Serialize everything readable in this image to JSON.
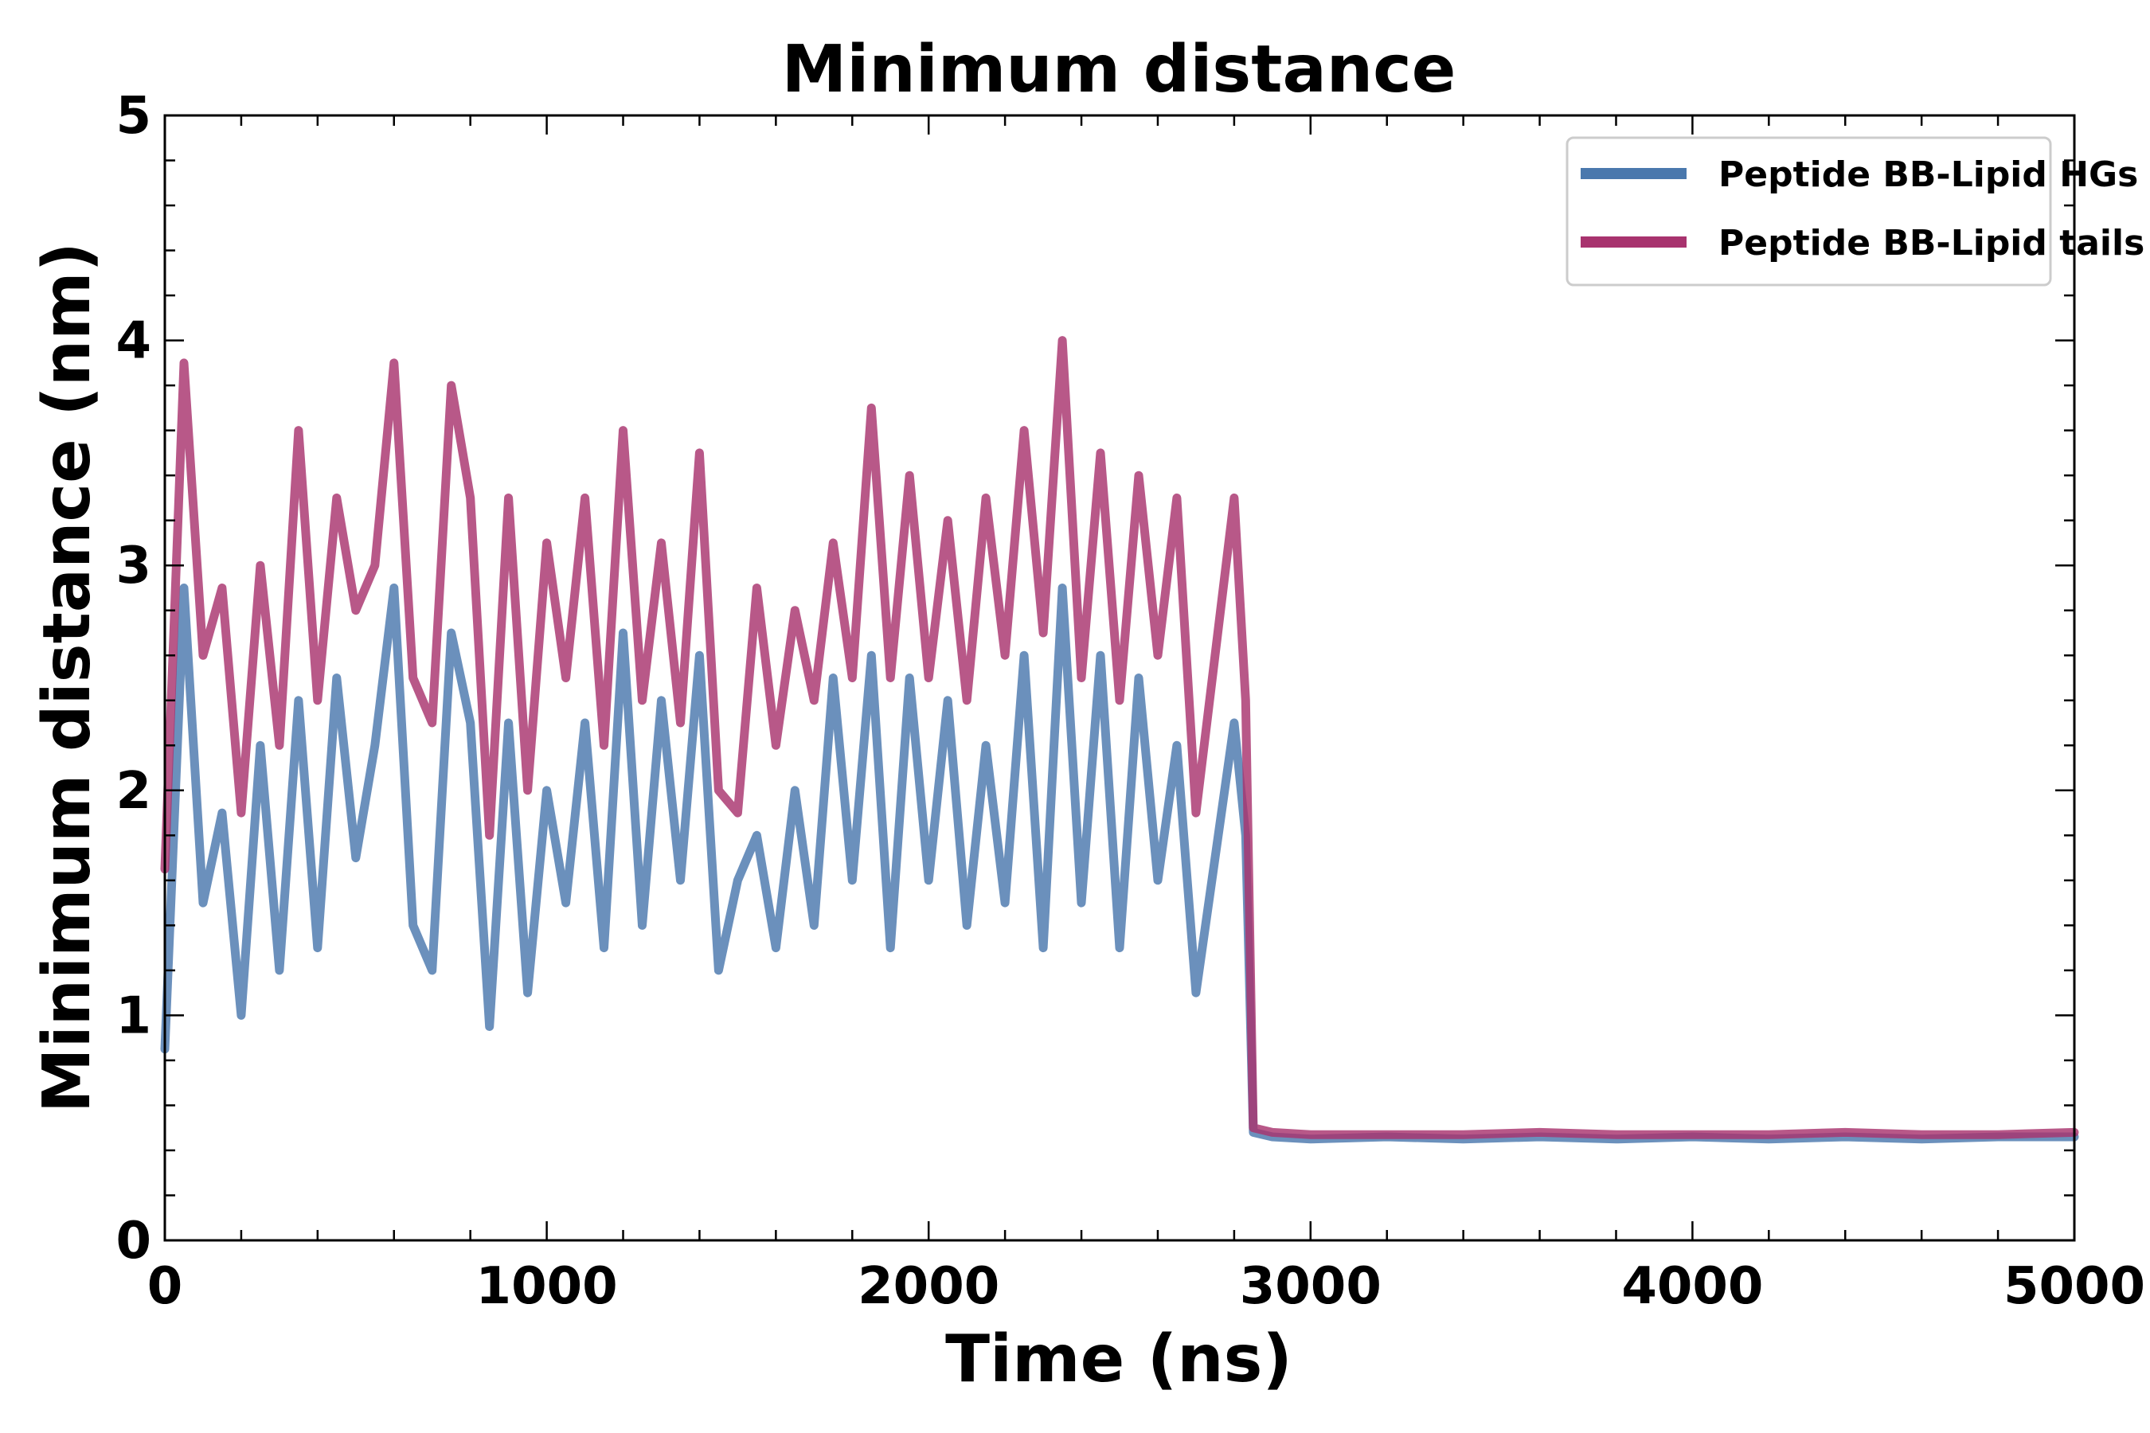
{
  "chart_data": {
    "type": "line",
    "title": "Minimum distance",
    "xlabel": "Time (ns)",
    "ylabel": "Minimum distance (nm)",
    "xlim": [
      0,
      5000
    ],
    "ylim": [
      0,
      5
    ],
    "x_ticks": [
      0,
      1000,
      2000,
      3000,
      4000,
      5000
    ],
    "y_ticks": [
      0,
      1,
      2,
      3,
      4,
      5
    ],
    "grid": false,
    "legend_position": "top-right",
    "series": [
      {
        "name": "Peptide BB-Lipid HGs",
        "color": "#4a78ad",
        "x": [
          0,
          50,
          100,
          150,
          200,
          250,
          300,
          350,
          400,
          450,
          500,
          550,
          600,
          650,
          700,
          750,
          800,
          850,
          900,
          950,
          1000,
          1050,
          1100,
          1150,
          1200,
          1250,
          1300,
          1350,
          1400,
          1450,
          1500,
          1550,
          1600,
          1650,
          1700,
          1750,
          1800,
          1850,
          1900,
          1950,
          2000,
          2050,
          2100,
          2150,
          2200,
          2250,
          2300,
          2350,
          2400,
          2450,
          2500,
          2550,
          2600,
          2650,
          2700,
          2750,
          2800,
          2830,
          2850,
          2900,
          3000,
          3200,
          3400,
          3600,
          3800,
          4000,
          4200,
          4400,
          4600,
          4800,
          5000
        ],
        "values": [
          0.85,
          2.9,
          1.5,
          1.9,
          1.0,
          2.2,
          1.2,
          2.4,
          1.3,
          2.5,
          1.7,
          2.2,
          2.9,
          1.4,
          1.2,
          2.7,
          2.3,
          0.95,
          2.3,
          1.1,
          2.0,
          1.5,
          2.3,
          1.3,
          2.7,
          1.4,
          2.4,
          1.6,
          2.6,
          1.2,
          1.6,
          1.8,
          1.3,
          2.0,
          1.4,
          2.5,
          1.6,
          2.6,
          1.3,
          2.5,
          1.6,
          2.4,
          1.4,
          2.2,
          1.5,
          2.6,
          1.3,
          2.9,
          1.5,
          2.6,
          1.3,
          2.5,
          1.6,
          2.2,
          1.1,
          1.7,
          2.3,
          1.8,
          0.48,
          0.46,
          0.45,
          0.46,
          0.45,
          0.46,
          0.45,
          0.46,
          0.45,
          0.46,
          0.45,
          0.46,
          0.46
        ]
      },
      {
        "name": "Peptide BB-Lipid tails",
        "color": "#a8336e",
        "x": [
          0,
          50,
          100,
          150,
          200,
          250,
          300,
          350,
          400,
          450,
          500,
          550,
          600,
          650,
          700,
          750,
          800,
          850,
          900,
          950,
          1000,
          1050,
          1100,
          1150,
          1200,
          1250,
          1300,
          1350,
          1400,
          1450,
          1500,
          1550,
          1600,
          1650,
          1700,
          1750,
          1800,
          1850,
          1900,
          1950,
          2000,
          2050,
          2100,
          2150,
          2200,
          2250,
          2300,
          2350,
          2400,
          2450,
          2500,
          2550,
          2600,
          2650,
          2700,
          2750,
          2800,
          2830,
          2850,
          2900,
          3000,
          3200,
          3400,
          3600,
          3800,
          4000,
          4200,
          4400,
          4600,
          4800,
          5000
        ],
        "values": [
          1.65,
          3.9,
          2.6,
          2.9,
          1.9,
          3.0,
          2.2,
          3.6,
          2.4,
          3.3,
          2.8,
          3.0,
          3.9,
          2.5,
          2.3,
          3.8,
          3.3,
          1.8,
          3.3,
          2.0,
          3.1,
          2.5,
          3.3,
          2.2,
          3.6,
          2.4,
          3.1,
          2.3,
          3.5,
          2.0,
          1.9,
          2.9,
          2.2,
          2.8,
          2.4,
          3.1,
          2.5,
          3.7,
          2.5,
          3.4,
          2.5,
          3.2,
          2.4,
          3.3,
          2.6,
          3.6,
          2.7,
          4.0,
          2.5,
          3.5,
          2.4,
          3.4,
          2.6,
          3.3,
          1.9,
          2.6,
          3.3,
          2.4,
          0.5,
          0.48,
          0.47,
          0.47,
          0.47,
          0.48,
          0.47,
          0.47,
          0.47,
          0.48,
          0.47,
          0.47,
          0.48
        ]
      }
    ]
  }
}
